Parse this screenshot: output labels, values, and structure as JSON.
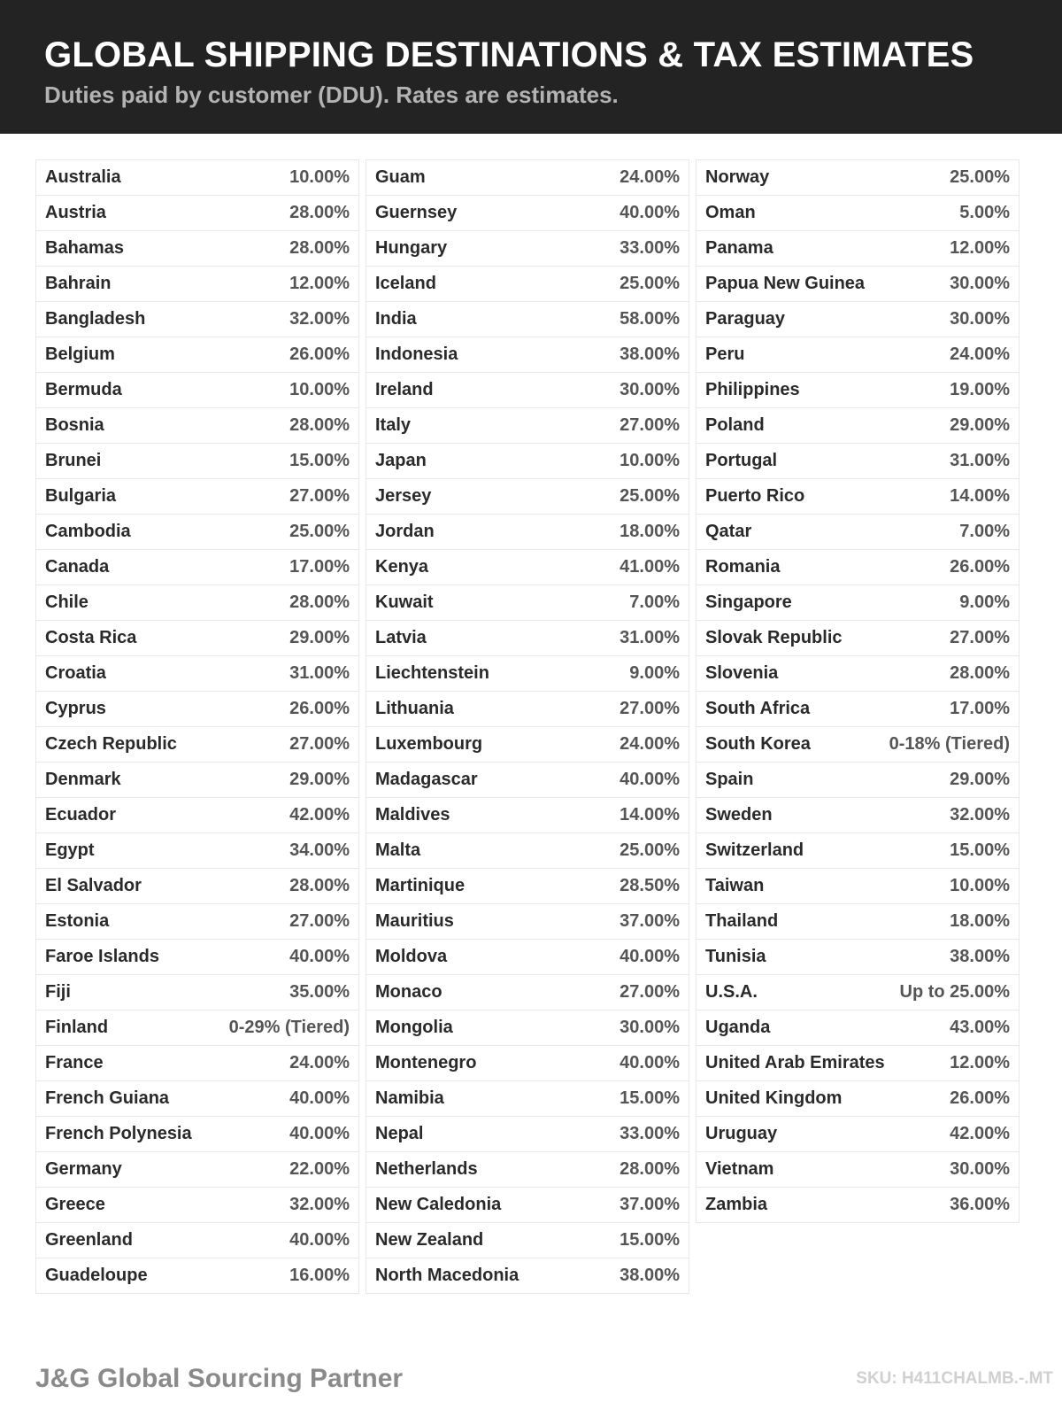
{
  "header": {
    "title": "GLOBAL SHIPPING DESTINATIONS & TAX ESTIMATES",
    "subtitle": "Duties paid by customer (DDU). Rates are estimates."
  },
  "columns": [
    [
      [
        "Australia",
        "10.00%"
      ],
      [
        "Austria",
        "28.00%"
      ],
      [
        "Bahamas",
        "28.00%"
      ],
      [
        "Bahrain",
        "12.00%"
      ],
      [
        "Bangladesh",
        "32.00%"
      ],
      [
        "Belgium",
        "26.00%"
      ],
      [
        "Bermuda",
        "10.00%"
      ],
      [
        "Bosnia",
        "28.00%"
      ],
      [
        "Brunei",
        "15.00%"
      ],
      [
        "Bulgaria",
        "27.00%"
      ],
      [
        "Cambodia",
        "25.00%"
      ],
      [
        "Canada",
        "17.00%"
      ],
      [
        "Chile",
        "28.00%"
      ],
      [
        "Costa Rica",
        "29.00%"
      ],
      [
        "Croatia",
        "31.00%"
      ],
      [
        "Cyprus",
        "26.00%"
      ],
      [
        "Czech Republic",
        "27.00%"
      ],
      [
        "Denmark",
        "29.00%"
      ],
      [
        "Ecuador",
        "42.00%"
      ],
      [
        "Egypt",
        "34.00%"
      ],
      [
        "El Salvador",
        "28.00%"
      ],
      [
        "Estonia",
        "27.00%"
      ],
      [
        "Faroe Islands",
        "40.00%"
      ],
      [
        "Fiji",
        "35.00%"
      ],
      [
        "Finland",
        "0-29% (Tiered)"
      ],
      [
        "France",
        "24.00%"
      ],
      [
        "French Guiana",
        "40.00%"
      ],
      [
        "French Polynesia",
        "40.00%"
      ],
      [
        "Germany",
        "22.00%"
      ],
      [
        "Greece",
        "32.00%"
      ],
      [
        "Greenland",
        "40.00%"
      ],
      [
        "Guadeloupe",
        "16.00%"
      ]
    ],
    [
      [
        "Guam",
        "24.00%"
      ],
      [
        "Guernsey",
        "40.00%"
      ],
      [
        "Hungary",
        "33.00%"
      ],
      [
        "Iceland",
        "25.00%"
      ],
      [
        "India",
        "58.00%"
      ],
      [
        "Indonesia",
        "38.00%"
      ],
      [
        "Ireland",
        "30.00%"
      ],
      [
        "Italy",
        "27.00%"
      ],
      [
        "Japan",
        "10.00%"
      ],
      [
        "Jersey",
        "25.00%"
      ],
      [
        "Jordan",
        "18.00%"
      ],
      [
        "Kenya",
        "41.00%"
      ],
      [
        "Kuwait",
        "7.00%"
      ],
      [
        "Latvia",
        "31.00%"
      ],
      [
        "Liechtenstein",
        "9.00%"
      ],
      [
        "Lithuania",
        "27.00%"
      ],
      [
        "Luxembourg",
        "24.00%"
      ],
      [
        "Madagascar",
        "40.00%"
      ],
      [
        "Maldives",
        "14.00%"
      ],
      [
        "Malta",
        "25.00%"
      ],
      [
        "Martinique",
        "28.50%"
      ],
      [
        "Mauritius",
        "37.00%"
      ],
      [
        "Moldova",
        "40.00%"
      ],
      [
        "Monaco",
        "27.00%"
      ],
      [
        "Mongolia",
        "30.00%"
      ],
      [
        "Montenegro",
        "40.00%"
      ],
      [
        "Namibia",
        "15.00%"
      ],
      [
        "Nepal",
        "33.00%"
      ],
      [
        "Netherlands",
        "28.00%"
      ],
      [
        "New Caledonia",
        "37.00%"
      ],
      [
        "New Zealand",
        "15.00%"
      ],
      [
        "North Macedonia",
        "38.00%"
      ]
    ],
    [
      [
        "Norway",
        "25.00%"
      ],
      [
        "Oman",
        "5.00%"
      ],
      [
        "Panama",
        "12.00%"
      ],
      [
        "Papua New Guinea",
        "30.00%"
      ],
      [
        "Paraguay",
        "30.00%"
      ],
      [
        "Peru",
        "24.00%"
      ],
      [
        "Philippines",
        "19.00%"
      ],
      [
        "Poland",
        "29.00%"
      ],
      [
        "Portugal",
        "31.00%"
      ],
      [
        "Puerto Rico",
        "14.00%"
      ],
      [
        "Qatar",
        "7.00%"
      ],
      [
        "Romania",
        "26.00%"
      ],
      [
        "Singapore",
        "9.00%"
      ],
      [
        "Slovak Republic",
        "27.00%"
      ],
      [
        "Slovenia",
        "28.00%"
      ],
      [
        "South Africa",
        "17.00%"
      ],
      [
        "South Korea",
        "0-18% (Tiered)"
      ],
      [
        "Spain",
        "29.00%"
      ],
      [
        "Sweden",
        "32.00%"
      ],
      [
        "Switzerland",
        "15.00%"
      ],
      [
        "Taiwan",
        "10.00%"
      ],
      [
        "Thailand",
        "18.00%"
      ],
      [
        "Tunisia",
        "38.00%"
      ],
      [
        "U.S.A.",
        "Up to 25.00%"
      ],
      [
        "Uganda",
        "43.00%"
      ],
      [
        "United Arab Emirates",
        "12.00%"
      ],
      [
        "United Kingdom",
        "26.00%"
      ],
      [
        "Uruguay",
        "42.00%"
      ],
      [
        "Vietnam",
        "30.00%"
      ],
      [
        "Zambia",
        "36.00%"
      ]
    ]
  ],
  "footer": {
    "brand": "J&G Global Sourcing Partner",
    "sku": "SKU: H411CHALMB.-.MT"
  }
}
